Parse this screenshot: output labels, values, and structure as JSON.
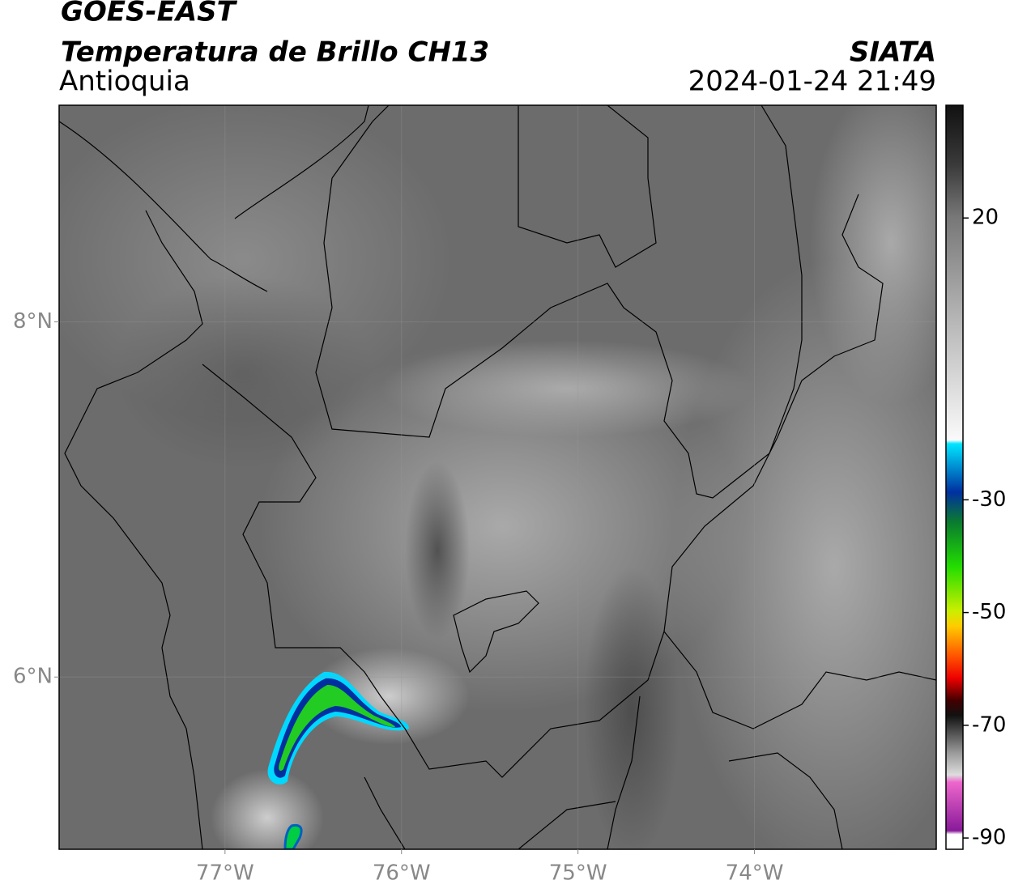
{
  "header": {
    "title": "GOES-EAST",
    "subtitle": "Temperatura de Brillo CH13",
    "region": "Antioquia",
    "source": "SIATA",
    "timestamp": "2024-01-24 21:49"
  },
  "map": {
    "lon_lim": [
      -77.94,
      -72.97
    ],
    "lat_lim": [
      5.03,
      9.22
    ],
    "lon_ticks": [
      {
        "value": -77,
        "label": "77°W"
      },
      {
        "value": -76,
        "label": "76°W"
      },
      {
        "value": -75,
        "label": "75°W"
      },
      {
        "value": -74,
        "label": "74°W"
      }
    ],
    "lat_ticks": [
      {
        "value": 8,
        "label": "8°N"
      },
      {
        "value": 6,
        "label": "6°N"
      }
    ]
  },
  "colorbar": {
    "lim": [
      -92,
      40
    ],
    "ticks": [
      20,
      -30,
      -50,
      -70,
      -90
    ]
  }
}
